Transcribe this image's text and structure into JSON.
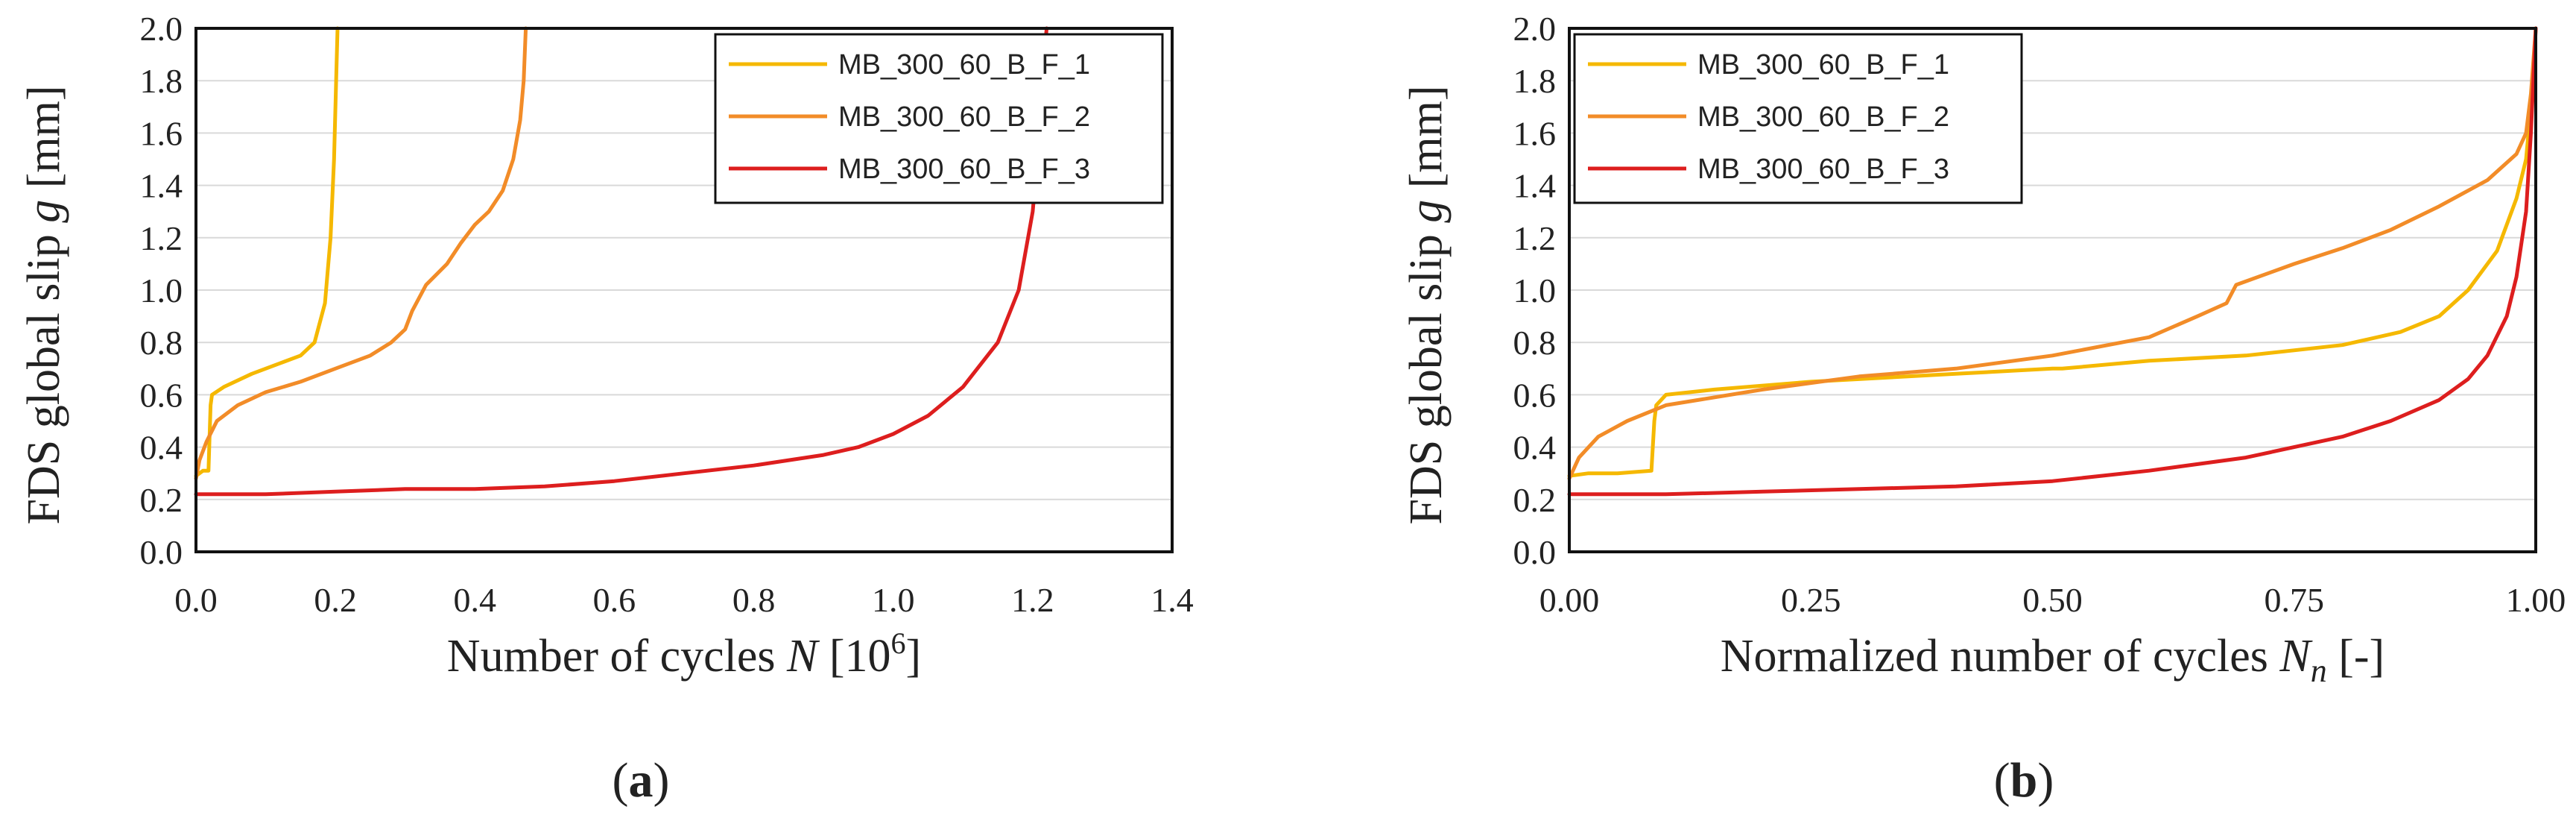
{
  "colors": {
    "s1": "#F5B800",
    "s2": "#F28C28",
    "s3": "#DD1E1E",
    "grid": "#d9d9d9",
    "axis": "#111111"
  },
  "panels": [
    {
      "label_open": "(",
      "label_letter": "a",
      "label_close": ")"
    },
    {
      "label_open": "(",
      "label_letter": "b",
      "label_close": ")"
    }
  ],
  "chart_data": [
    {
      "type": "line",
      "title": "",
      "ylabel": "FDS global slip g [mm]",
      "xlabel": "Number of cycles N [10^6]",
      "xlabel_parts": {
        "prefix": "Number of cycles ",
        "var": "N",
        "mid": " [10",
        "sup": "6",
        "suffix": "]"
      },
      "ylabel_parts": {
        "prefix": "FDS global slip ",
        "var": "g",
        "suffix": " [mm]"
      },
      "xlim": [
        0,
        1.4
      ],
      "ylim": [
        0,
        2.0
      ],
      "xticks": [
        "0.0",
        "0.2",
        "0.4",
        "0.6",
        "0.8",
        "1.0",
        "1.2",
        "1.4"
      ],
      "yticks": [
        "0.0",
        "0.2",
        "0.4",
        "0.6",
        "0.8",
        "1.0",
        "1.2",
        "1.4",
        "1.6",
        "1.8",
        "2.0"
      ],
      "grid": "horizontal",
      "legend_position": "top-right",
      "series": [
        {
          "name": "MB_300_60_B_F_1",
          "color_key": "s1",
          "x": [
            0,
            0.01,
            0.018,
            0.02,
            0.021,
            0.023,
            0.04,
            0.08,
            0.12,
            0.15,
            0.17,
            0.185,
            0.193,
            0.198,
            0.201,
            0.203
          ],
          "y": [
            0.29,
            0.31,
            0.31,
            0.48,
            0.56,
            0.6,
            0.63,
            0.68,
            0.72,
            0.75,
            0.8,
            0.95,
            1.2,
            1.5,
            1.8,
            2.0
          ]
        },
        {
          "name": "MB_300_60_B_F_2",
          "color_key": "s2",
          "x": [
            0,
            0.005,
            0.015,
            0.03,
            0.06,
            0.1,
            0.15,
            0.2,
            0.25,
            0.28,
            0.3,
            0.31,
            0.33,
            0.36,
            0.38,
            0.4,
            0.42,
            0.44,
            0.455,
            0.465,
            0.47,
            0.473
          ],
          "y": [
            0.28,
            0.35,
            0.42,
            0.5,
            0.56,
            0.61,
            0.65,
            0.7,
            0.75,
            0.8,
            0.85,
            0.92,
            1.02,
            1.1,
            1.18,
            1.25,
            1.3,
            1.38,
            1.5,
            1.65,
            1.8,
            2.0
          ]
        },
        {
          "name": "MB_300_60_B_F_3",
          "color_key": "s3",
          "x": [
            0,
            0.1,
            0.2,
            0.3,
            0.4,
            0.5,
            0.6,
            0.7,
            0.8,
            0.9,
            0.95,
            1.0,
            1.05,
            1.1,
            1.15,
            1.18,
            1.2,
            1.21,
            1.215,
            1.22
          ],
          "y": [
            0.22,
            0.22,
            0.23,
            0.24,
            0.24,
            0.25,
            0.27,
            0.3,
            0.33,
            0.37,
            0.4,
            0.45,
            0.52,
            0.63,
            0.8,
            1.0,
            1.3,
            1.6,
            1.85,
            2.0
          ]
        }
      ]
    },
    {
      "type": "line",
      "title": "",
      "ylabel": "FDS global  slip g [mm]",
      "xlabel": "Normalized number of cycles N_n [-]",
      "xlabel_parts": {
        "prefix": "Normalized number of cycles ",
        "var": "N",
        "sub": "n",
        "suffix": " [-]"
      },
      "ylabel_parts": {
        "prefix": "FDS global  slip ",
        "var": "g",
        "suffix": " [mm]"
      },
      "xlim": [
        0,
        1.0
      ],
      "ylim": [
        0,
        2.0
      ],
      "xticks": [
        "0.00",
        "0.25",
        "0.50",
        "0.75",
        "1.00"
      ],
      "yticks": [
        "0.0",
        "0.2",
        "0.4",
        "0.6",
        "0.8",
        "1.0",
        "1.2",
        "1.4",
        "1.6",
        "1.8",
        "2.0"
      ],
      "grid": "horizontal",
      "legend_position": "top-left",
      "series": [
        {
          "name": "MB_300_60_B_F_1",
          "color_key": "s1",
          "x": [
            0,
            0.02,
            0.05,
            0.085,
            0.088,
            0.09,
            0.1,
            0.15,
            0.25,
            0.4,
            0.5,
            0.51,
            0.6,
            0.7,
            0.8,
            0.86,
            0.9,
            0.93,
            0.96,
            0.98,
            0.99,
            0.995,
            1.0
          ],
          "y": [
            0.29,
            0.3,
            0.3,
            0.31,
            0.5,
            0.56,
            0.6,
            0.62,
            0.65,
            0.68,
            0.7,
            0.7,
            0.73,
            0.75,
            0.79,
            0.84,
            0.9,
            1.0,
            1.15,
            1.35,
            1.5,
            1.7,
            2.0
          ]
        },
        {
          "name": "MB_300_60_B_F_2",
          "color_key": "s2",
          "x": [
            0,
            0.01,
            0.03,
            0.06,
            0.1,
            0.2,
            0.3,
            0.4,
            0.5,
            0.6,
            0.65,
            0.68,
            0.69,
            0.75,
            0.8,
            0.85,
            0.9,
            0.95,
            0.98,
            0.99,
            0.995,
            1.0
          ],
          "y": [
            0.28,
            0.36,
            0.44,
            0.5,
            0.56,
            0.62,
            0.67,
            0.7,
            0.75,
            0.82,
            0.9,
            0.95,
            1.02,
            1.1,
            1.16,
            1.23,
            1.32,
            1.42,
            1.52,
            1.6,
            1.75,
            2.0
          ]
        },
        {
          "name": "MB_300_60_B_F_3",
          "color_key": "s3",
          "x": [
            0,
            0.1,
            0.2,
            0.3,
            0.4,
            0.5,
            0.6,
            0.7,
            0.8,
            0.85,
            0.9,
            0.93,
            0.95,
            0.97,
            0.98,
            0.99,
            0.995,
            1.0
          ],
          "y": [
            0.22,
            0.22,
            0.23,
            0.24,
            0.25,
            0.27,
            0.31,
            0.36,
            0.44,
            0.5,
            0.58,
            0.66,
            0.75,
            0.9,
            1.05,
            1.3,
            1.6,
            2.0
          ]
        }
      ]
    }
  ]
}
